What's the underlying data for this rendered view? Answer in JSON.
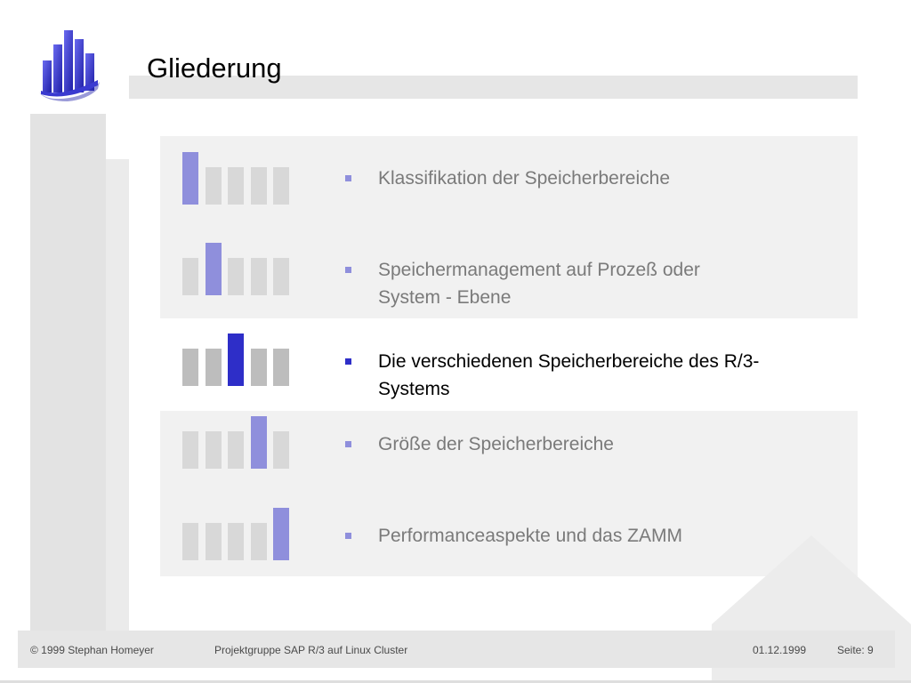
{
  "header": {
    "title": "Gliederung",
    "logo_icon": "university-logo-icon"
  },
  "agenda": {
    "total_sections": 5,
    "current_section": 3,
    "items": [
      {
        "lines": [
          "Klassifikation der Speicherbereiche"
        ],
        "section": 1
      },
      {
        "lines": [
          "Speichermanagement auf Prozeß oder",
          "System - Ebene"
        ],
        "section": 2
      },
      {
        "lines": [
          "Die verschiedenen Speicherbereiche des R/3-",
          "Systems"
        ],
        "section": 3
      },
      {
        "lines": [
          "Größe der Speicherbereiche"
        ],
        "section": 4
      },
      {
        "lines": [
          "Performanceaspekte und das ZAMM"
        ],
        "section": 5
      }
    ]
  },
  "footer": {
    "copyright": "© 1999 Stephan Homeyer",
    "project": "Projektgruppe SAP R/3 auf Linux Cluster",
    "date": "01.12.1999",
    "page": "Seite: 9"
  },
  "colors": {
    "accent": "#8f8fdc",
    "accent_active": "#2e2ec8",
    "inactive_bar": "#d8d8d8",
    "panel": "#f1f1f1",
    "band": "#e6e6e6"
  }
}
